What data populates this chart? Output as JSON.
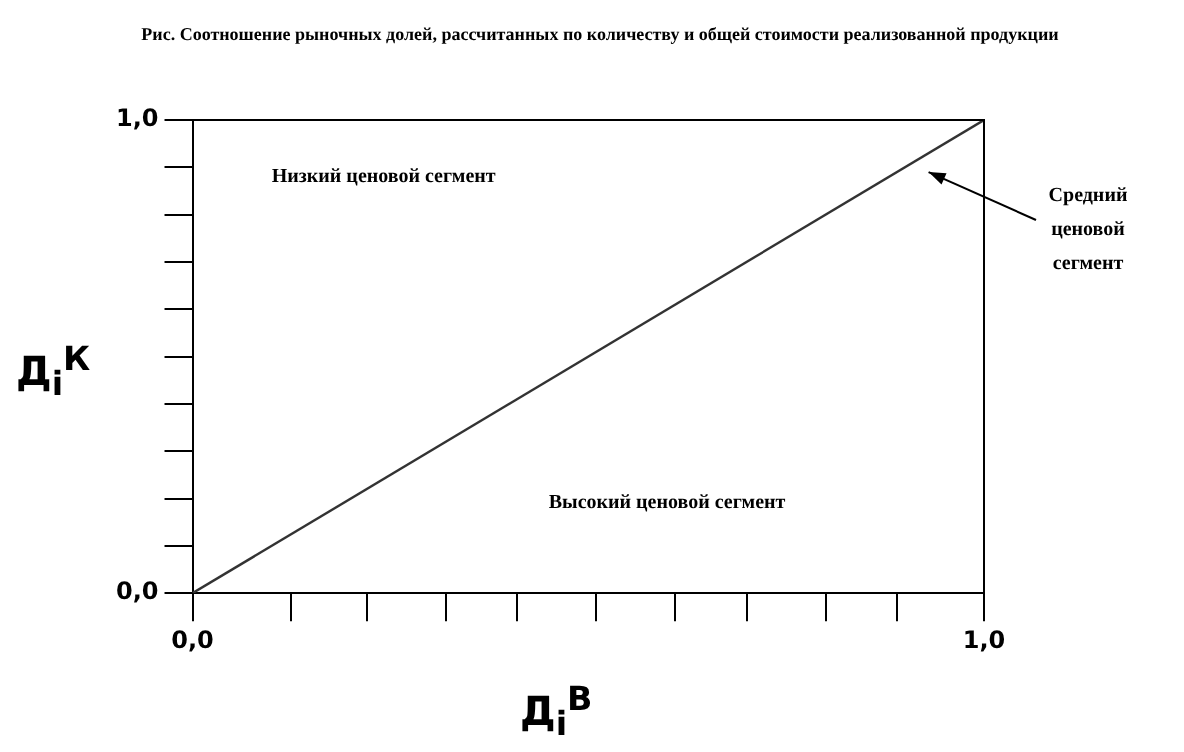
{
  "chart_data": {
    "type": "line",
    "title": "Рис. Соотношение рыночных долей, рассчитанных по количеству и общей стоимости реализованной продукции",
    "xlabel": "Д$_{i}$$^{В}$",
    "ylabel": "Д$_{i}$$^{К}$",
    "x": [
      0,
      1
    ],
    "series": [
      {
        "color": "#333333",
        "values": [
          0,
          1
        ]
      }
    ],
    "xlim": [
      0,
      1
    ],
    "ylim": [
      0,
      1
    ],
    "xticks": [
      {
        "value": 0,
        "label": "0,0"
      },
      {
        "value": 0.125,
        "label": null
      },
      {
        "value": 0.22,
        "label": null
      },
      {
        "value": 0.32,
        "label": null
      },
      {
        "value": 0.41,
        "label": null
      },
      {
        "value": 0.51,
        "label": null
      },
      {
        "value": 0.61,
        "label": null
      },
      {
        "value": 0.7,
        "label": null
      },
      {
        "value": 0.8,
        "label": null
      },
      {
        "value": 0.89,
        "label": null
      },
      {
        "value": 1,
        "label": "1,0"
      }
    ],
    "yticks": [
      {
        "value": 0,
        "label": "0,0"
      },
      {
        "value": 0.1,
        "label": null
      },
      {
        "value": 0.2,
        "label": null
      },
      {
        "value": 0.3,
        "label": null
      },
      {
        "value": 0.4,
        "label": null
      },
      {
        "value": 0.5,
        "label": null
      },
      {
        "value": 0.6,
        "label": null
      },
      {
        "value": 0.7,
        "label": null
      },
      {
        "value": 0.8,
        "label": null
      },
      {
        "value": 0.9,
        "label": null
      },
      {
        "value": 1,
        "label": "1,0"
      }
    ],
    "annotations": [
      "Низкий ценовой сегмент",
      "Высокий ценовой сегмент",
      "Средний ценовой сегмент"
    ],
    "grid": false,
    "legend": false,
    "marker": "none",
    "line_style": "solid"
  }
}
